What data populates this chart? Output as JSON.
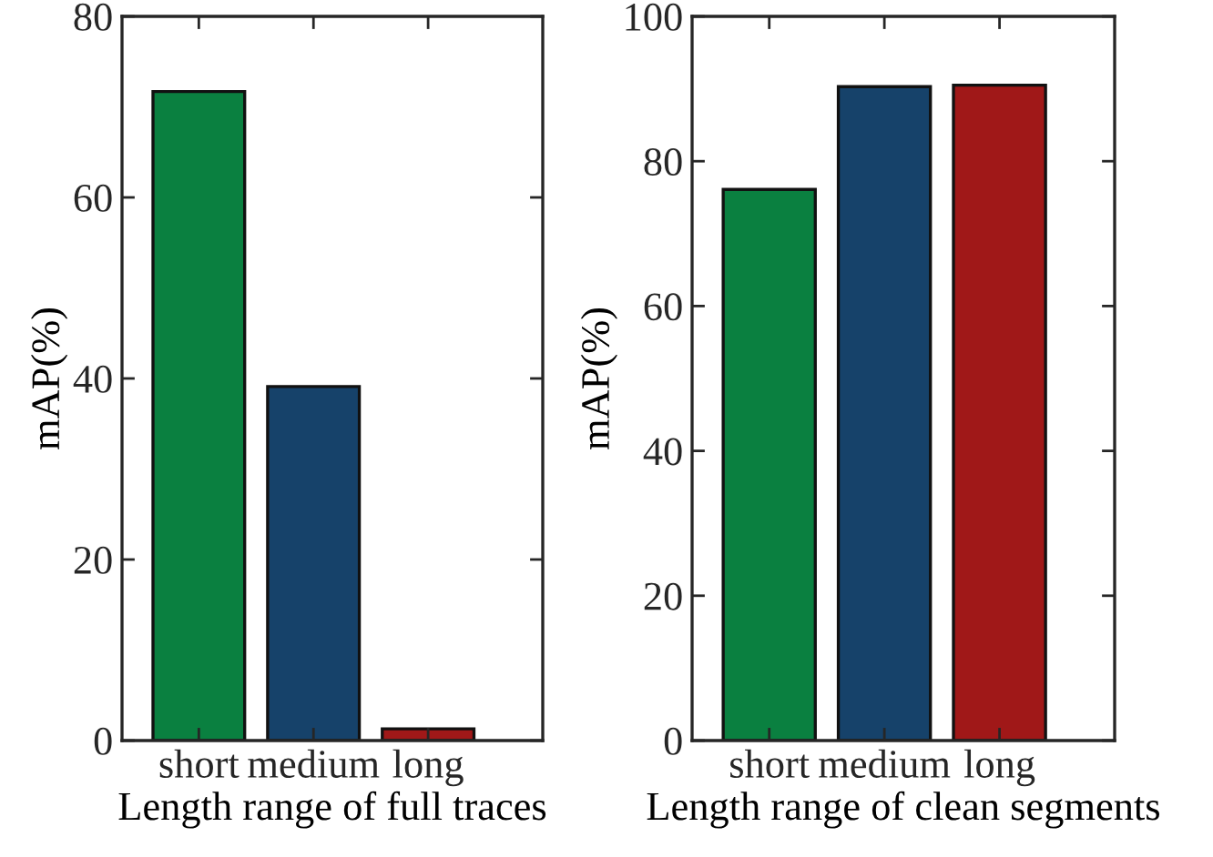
{
  "chart_data": [
    {
      "type": "bar",
      "xlabel": "Length range of full traces",
      "ylabel": "mAP(%)",
      "categories": [
        "short",
        "medium",
        "long"
      ],
      "values": [
        71.7,
        39.1,
        1.3
      ],
      "colors": [
        "#0a8040",
        "#16426a",
        "#a01818"
      ],
      "ylim": [
        0,
        80
      ],
      "yticks": [
        0,
        20,
        40,
        60,
        80
      ],
      "grid": false
    },
    {
      "type": "bar",
      "xlabel": "Length range of clean segments",
      "ylabel": "mAP(%)",
      "categories": [
        "short",
        "medium",
        "long"
      ],
      "values": [
        76.1,
        90.3,
        90.5
      ],
      "colors": [
        "#0a8040",
        "#16426a",
        "#a01818"
      ],
      "ylim": [
        0,
        100
      ],
      "yticks": [
        0,
        20,
        40,
        60,
        80,
        100
      ],
      "grid": false
    }
  ]
}
